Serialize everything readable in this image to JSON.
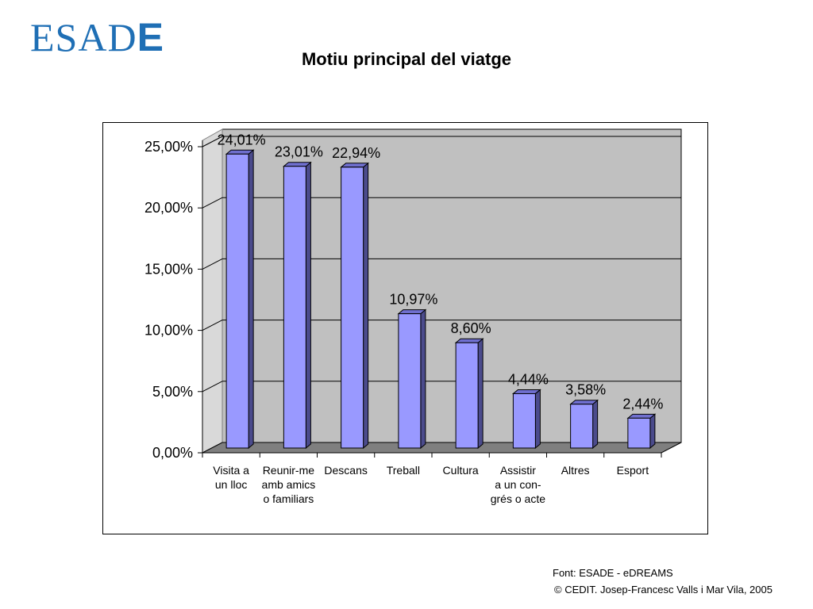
{
  "logo": {
    "main": "ESAD",
    "last": "E"
  },
  "title": "Motiu principal del viatge",
  "footer": {
    "source": "Font: ESADE - eDREAMS",
    "copyright": "© CEDIT. Josep-Francesc Valls i Mar Vila, 2005"
  },
  "colors": {
    "bar_front": "#9999ff",
    "bar_side": "#4b4b8c",
    "bar_top": "#6f6fcf",
    "wall": "#c0c0c0",
    "floor": "#7f7f7f"
  },
  "chart_data": {
    "type": "bar",
    "title": "Motiu principal del viatge",
    "xlabel": "",
    "ylabel": "",
    "ylim": [
      0,
      25
    ],
    "yticks": [
      "0,00%",
      "5,00%",
      "10,00%",
      "15,00%",
      "20,00%",
      "25,00%"
    ],
    "grid": true,
    "legend": "none",
    "categories": [
      [
        "Visita a",
        "un lloc"
      ],
      [
        "Reunir-me",
        "amb amics",
        "o familiars"
      ],
      [
        "Descans"
      ],
      [
        "Treball"
      ],
      [
        "Cultura"
      ],
      [
        "Assistir",
        "a un con-",
        "grés o acte"
      ],
      [
        "Altres"
      ],
      [
        "Esport"
      ]
    ],
    "values": [
      24.01,
      23.01,
      22.94,
      10.97,
      8.6,
      4.44,
      3.58,
      2.44
    ],
    "data_labels": [
      "24,01%",
      "23,01%",
      "22,94%",
      "10,97%",
      "8,60%",
      "4,44%",
      "3,58%",
      "2,44%"
    ]
  }
}
